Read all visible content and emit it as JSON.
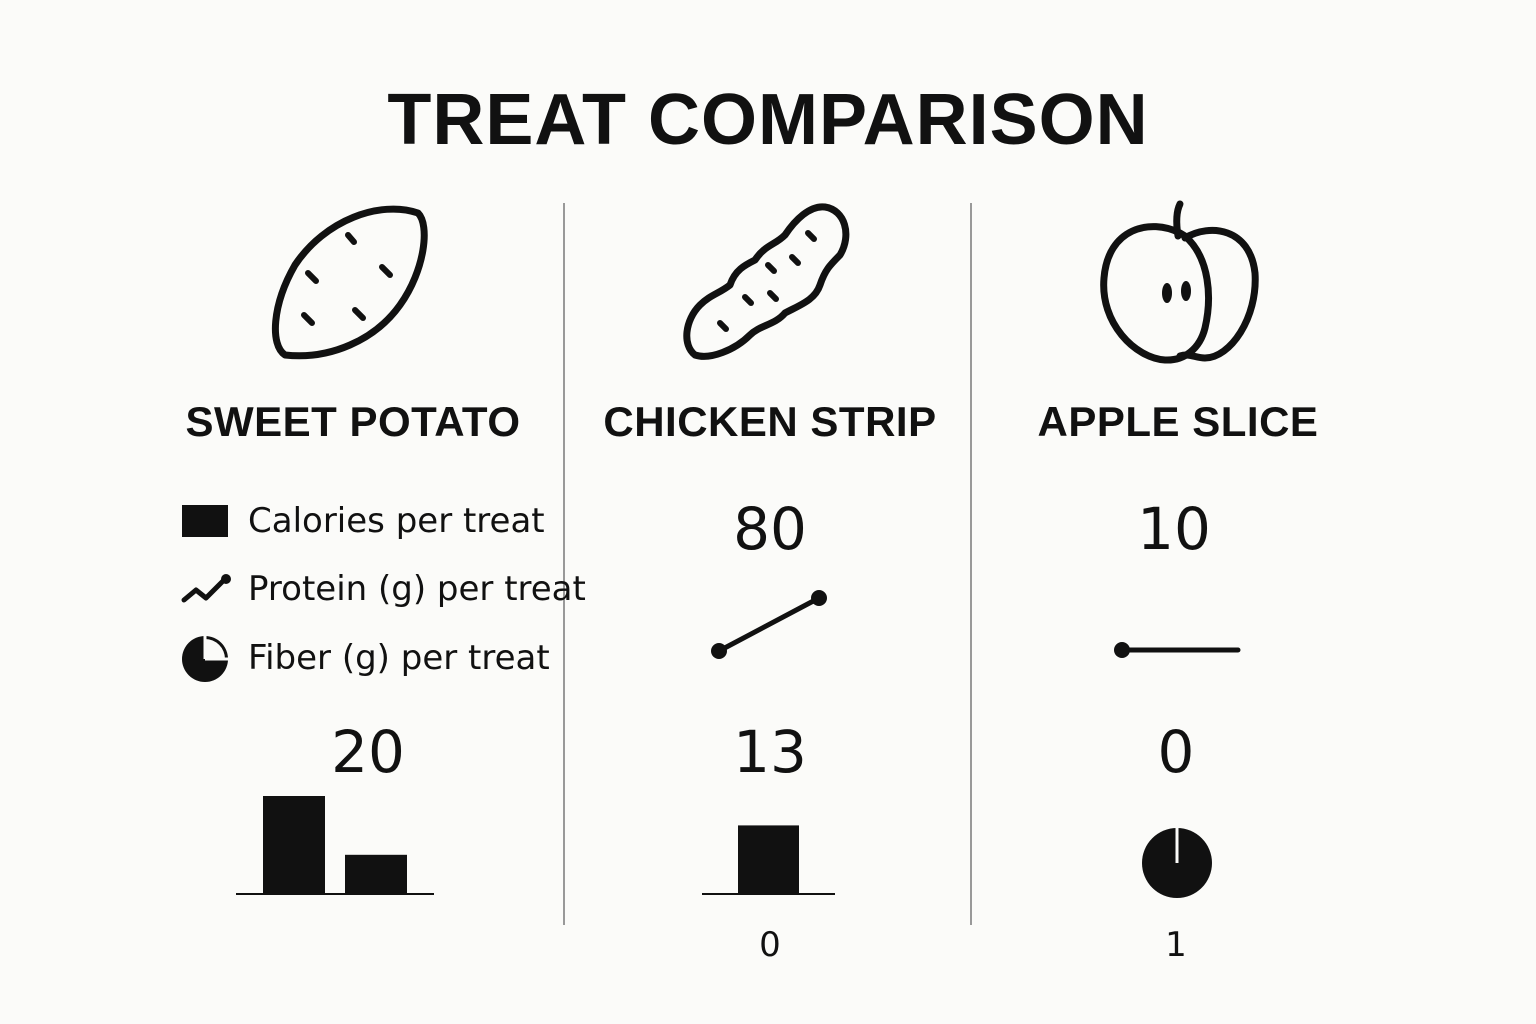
{
  "title": "TREAT COMPARISON",
  "legend": {
    "calories_label": "Calories per treat",
    "protein_label": "Protein (g) per treat",
    "fiber_label": "Fiber (g) per treat"
  },
  "columns": [
    {
      "name": "SWEET POTATO",
      "icon": "sweet-potato-icon",
      "top_number": "",
      "bottom_number": "20",
      "footer_number": ""
    },
    {
      "name": "CHICKEN STRIP",
      "icon": "chicken-strip-icon",
      "top_number": "80",
      "bottom_number": "13",
      "footer_number": "0"
    },
    {
      "name": "APPLE SLICE",
      "icon": "apple-slice-icon",
      "top_number": "10",
      "bottom_number": "0",
      "footer_number": "1"
    }
  ],
  "chart_data": {
    "type": "bar",
    "title": "TREAT COMPARISON",
    "categories": [
      "SWEET POTATO",
      "CHICKEN STRIP",
      "APPLE SLICE"
    ],
    "series": [
      {
        "name": "Calories per treat"
      },
      {
        "name": "Protein (g) per treat"
      },
      {
        "name": "Fiber (g) per treat"
      }
    ],
    "printed_values": {
      "SWEET POTATO": [
        "20"
      ],
      "CHICKEN STRIP": [
        "80",
        "13",
        "0"
      ],
      "APPLE SLICE": [
        "10",
        "0",
        "1"
      ]
    },
    "mini_bars": {
      "sweet_potato": [
        1.0,
        0.4
      ],
      "chicken_strip": [
        0.7
      ]
    },
    "grid": false,
    "legend_position": "left"
  },
  "colors": {
    "ink": "#111111",
    "divider": "#999999",
    "background": "#fbfbf9"
  }
}
